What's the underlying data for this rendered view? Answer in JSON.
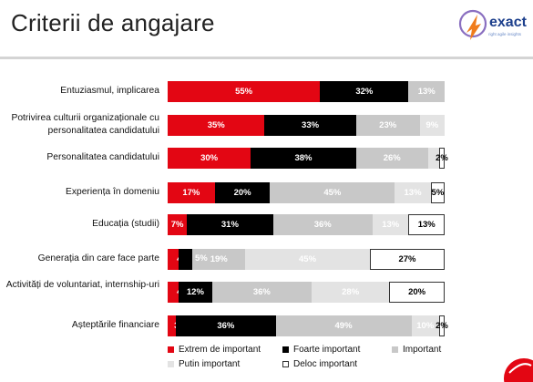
{
  "header": {
    "title": "Criterii de angajare"
  },
  "logo": {
    "word": "exact",
    "tagline": "right agile insights"
  },
  "colors": {
    "extrem": "#e30613",
    "foarte": "#000000",
    "important": "#c8c8c8",
    "putin": "#e3e3e3",
    "deloc": "#ffffff"
  },
  "chart_data": {
    "type": "bar",
    "orientation": "horizontal",
    "stacked": true,
    "normalized": true,
    "categories": [
      "Entuziasmul, implicarea",
      "Potrivirea culturii organizaționale cu personalitatea candidatului",
      "Personalitatea candidatului",
      "Experiența în domeniu",
      "Educația (studii)",
      "Generația din care face parte",
      "Activități de voluntariat, internship-uri",
      "Așteptările financiare"
    ],
    "series": [
      {
        "name": "Extrem de important",
        "key": "extrem",
        "values": [
          55,
          35,
          30,
          17,
          7,
          4,
          4,
          3
        ],
        "labels": [
          "55%",
          "35%",
          "30%",
          "17%",
          "7%",
          "4%",
          "4%",
          "3%"
        ]
      },
      {
        "name": "Foarte important",
        "key": "foarte",
        "values": [
          32,
          33,
          38,
          20,
          31,
          5,
          12,
          36
        ],
        "labels": [
          "32%",
          "33%",
          "38%",
          "20%",
          "31%",
          "",
          "12%",
          "36%"
        ]
      },
      {
        "name": "Important",
        "key": "important",
        "values": [
          13,
          23,
          26,
          45,
          36,
          19,
          36,
          49
        ],
        "labels": [
          "13%",
          "23%",
          "26%",
          "45%",
          "36%",
          "19%",
          "36%",
          "49%"
        ]
      },
      {
        "name": "Putin important",
        "key": "putin",
        "values": [
          0,
          9,
          4,
          13,
          13,
          45,
          28,
          10
        ],
        "labels": [
          "",
          "9%",
          "4%",
          "13%",
          "13%",
          "45%",
          "28%",
          "10%"
        ]
      },
      {
        "name": "Deloc important",
        "key": "deloc",
        "values": [
          0,
          0,
          2,
          5,
          13,
          27,
          20,
          2
        ],
        "labels": [
          "",
          "",
          "2%",
          "5%",
          "13%",
          "27%",
          "20%",
          "2%"
        ]
      }
    ],
    "outside_labels": [
      {
        "row": 5,
        "text": "5%"
      }
    ],
    "xlim": [
      0,
      100
    ],
    "legend": {
      "position": "bottom",
      "items": [
        {
          "label": "Extrem de important",
          "key": "extrem"
        },
        {
          "label": "Foarte important",
          "key": "foarte"
        },
        {
          "label": "Important",
          "key": "important"
        },
        {
          "label": "Putin important",
          "key": "putin"
        },
        {
          "label": "Deloc important",
          "key": "deloc"
        }
      ]
    }
  }
}
